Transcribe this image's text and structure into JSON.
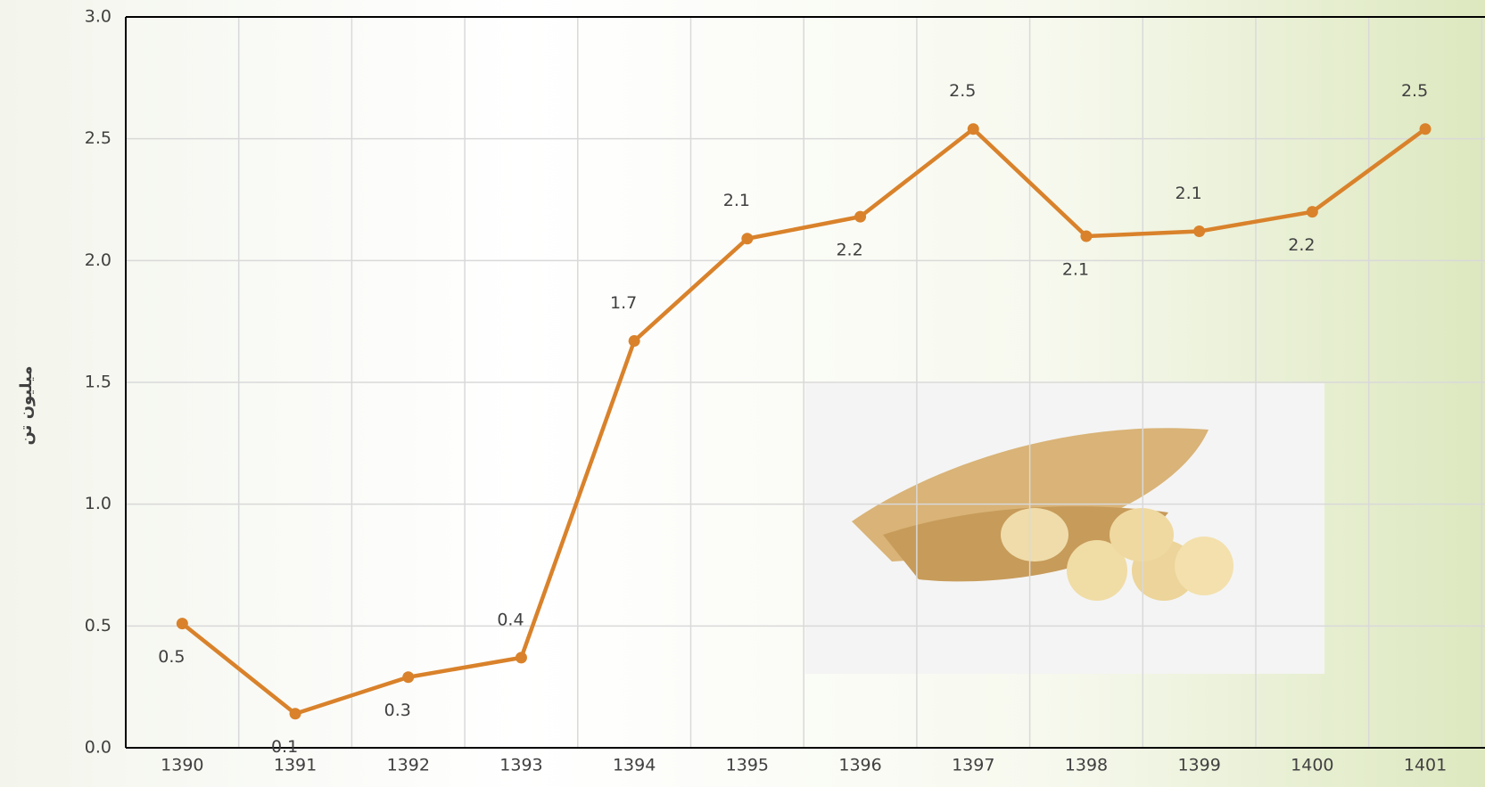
{
  "chart_data": {
    "type": "line",
    "y_label": "میلیون تن",
    "categories": [
      "1390",
      "1391",
      "1392",
      "1393",
      "1394",
      "1395",
      "1396",
      "1397",
      "1398",
      "1399",
      "1400",
      "1401"
    ],
    "series": [
      {
        "color": "#d9822b",
        "values": [
          0.51,
          0.14,
          0.29,
          0.37,
          1.67,
          2.09,
          2.18,
          2.54,
          2.1,
          2.12,
          2.2,
          2.54
        ],
        "value_labels": [
          "0.5",
          "0.1",
          "0.3",
          "0.4",
          "1.7",
          "2.1",
          "2.2",
          "2.5",
          "2.1",
          "2.1",
          "2.2",
          "2.5"
        ]
      }
    ],
    "ylim": [
      0,
      3
    ],
    "yticks": [
      {
        "value": 0,
        "label": "0.0"
      },
      0.5,
      {
        "value": 1,
        "label": "1.0"
      },
      1.5,
      {
        "value": 2,
        "label": "2.0"
      },
      2.5,
      {
        "value": 3,
        "label": "3.0"
      }
    ],
    "grid": true
  }
}
